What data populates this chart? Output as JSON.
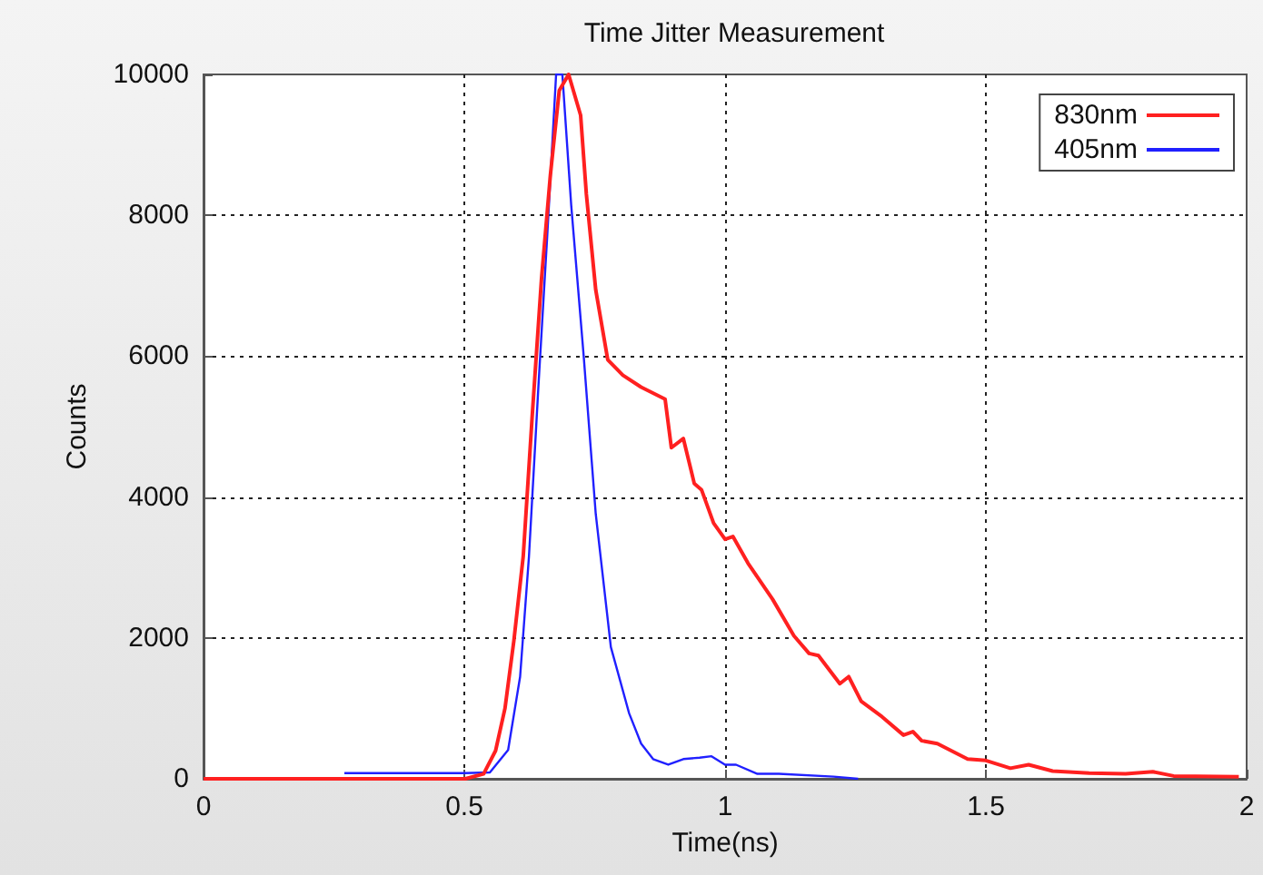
{
  "chart_data": {
    "type": "line",
    "title": "Time Jitter Measurement",
    "xlabel": "Time(ns)",
    "ylabel": "Counts",
    "xlim": [
      0,
      2
    ],
    "xticks": [
      0,
      0.5,
      1,
      1.5,
      2
    ],
    "ylim": [
      0,
      10000
    ],
    "yticks": [
      0,
      2000,
      4000,
      6000,
      8000,
      10000
    ],
    "grid": true,
    "legend": "top right",
    "marker": "none",
    "line_style": "solid",
    "series": [
      {
        "name": "830nm",
        "color": "#ff2020",
        "x": [
          0,
          0.1,
          0.2,
          0.3,
          0.4,
          0.502,
          0.537,
          0.56,
          0.578,
          0.595,
          0.613,
          0.63,
          0.648,
          0.665,
          0.682,
          0.7,
          0.723,
          0.734,
          0.752,
          0.775,
          0.804,
          0.839,
          0.885,
          0.897,
          0.92,
          0.941,
          0.955,
          0.978,
          1.0,
          1.015,
          1.044,
          1.091,
          1.132,
          1.161,
          1.179,
          1.22,
          1.237,
          1.261,
          1.301,
          1.342,
          1.36,
          1.377,
          1.407,
          1.465,
          1.5,
          1.547,
          1.582,
          1.628,
          1.698,
          1.768,
          1.82,
          1.86,
          1.985
        ],
        "values": [
          0,
          0,
          0,
          0,
          0,
          0,
          70,
          400,
          1000,
          1960,
          3160,
          5130,
          7100,
          8570,
          9770,
          10000,
          9420,
          8300,
          6940,
          5950,
          5730,
          5560,
          5390,
          4700,
          4830,
          4190,
          4100,
          3630,
          3400,
          3440,
          3060,
          2550,
          2030,
          1780,
          1750,
          1350,
          1450,
          1100,
          880,
          620,
          670,
          540,
          500,
          280,
          260,
          150,
          200,
          110,
          80,
          70,
          100,
          40,
          30
        ]
      },
      {
        "name": "405nm",
        "color": "#2020ff",
        "x": [
          0.27,
          0.4,
          0.5,
          0.549,
          0.584,
          0.607,
          0.624,
          0.642,
          0.659,
          0.676,
          0.688,
          0.705,
          0.729,
          0.752,
          0.781,
          0.816,
          0.839,
          0.862,
          0.891,
          0.92,
          0.951,
          0.974,
          1.0,
          1.021,
          1.062,
          1.103,
          1.208,
          1.255
        ],
        "values": [
          80,
          80,
          80,
          90,
          410,
          1450,
          3160,
          5560,
          7710,
          10000,
          10000,
          8140,
          5990,
          3760,
          1870,
          930,
          500,
          280,
          200,
          280,
          300,
          320,
          200,
          200,
          70,
          70,
          30,
          0
        ]
      }
    ]
  }
}
